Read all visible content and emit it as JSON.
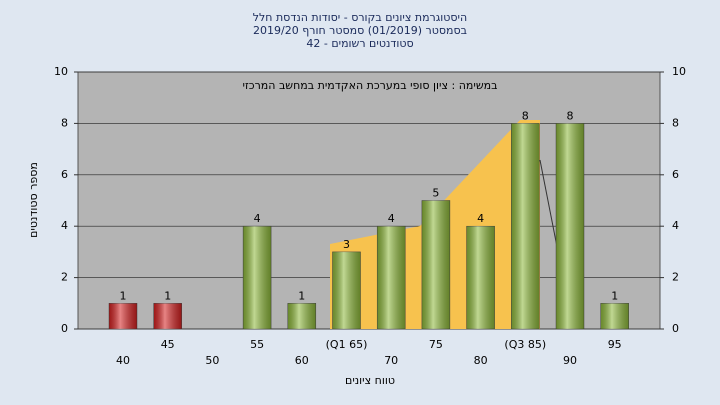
{
  "chart_data": {
    "type": "bar",
    "title": [
      "היסטוגרמת ציונים בקורס - יסודות הנדסת חלל",
      "בסמסטר  (01/2019)  סמסטר חורף 2019/20",
      "42 - סטודנטים רשומים"
    ],
    "subtitle": "במשימה : ציון סופי במערכת האקדמית במחשב המרכזי",
    "x_label": "טווח ציונים",
    "y_label": "מספר סטודנטים",
    "categories": [
      "40",
      "45",
      "50",
      "55",
      "60",
      "(Q1 65)",
      "70",
      "75",
      "80",
      "(Q3 85)",
      "90",
      "95"
    ],
    "values": [
      1,
      1,
      null,
      4,
      1,
      3,
      4,
      5,
      4,
      8,
      8,
      1
    ],
    "colors": [
      "#d42020",
      "#d42020",
      "#8db83a",
      "#8db83a",
      "#8db83a",
      "#8db83a",
      "#8db83a",
      "#8db83a",
      "#8db83a",
      "#8db83a",
      "#8db83a",
      "#8db83a"
    ],
    "ylim": [
      0,
      10
    ],
    "yticks": [
      0,
      2,
      4,
      6,
      8,
      10
    ],
    "y2lim": [
      0,
      10
    ],
    "y2ticks": [
      0,
      2,
      4,
      6,
      8,
      10
    ],
    "grid": true
  }
}
